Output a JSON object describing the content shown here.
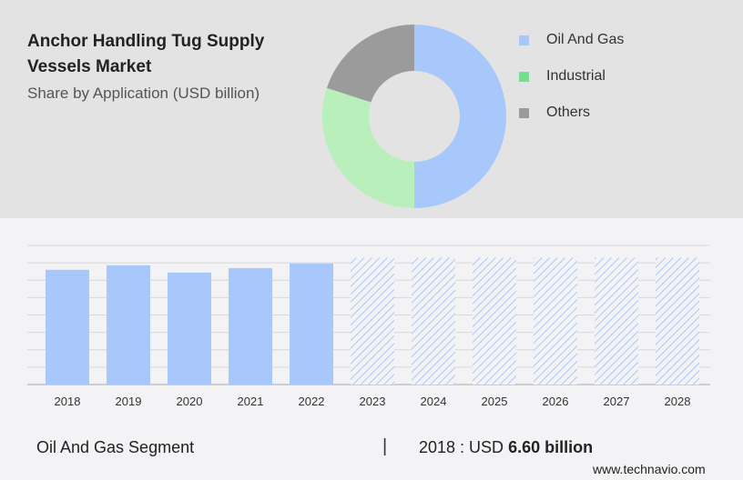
{
  "header": {
    "title": "Anchor Handling Tug Supply Vessels Market",
    "subtitle": "Share by Application (USD billion)"
  },
  "colors": {
    "oil": "#a8c8fc",
    "industrial": "#b9efba",
    "others": "#9b9b9b",
    "legend_industrial": "#72e08f",
    "forecast": "#a8c8fc"
  },
  "chart_data": [
    {
      "type": "pie",
      "title": "Share by Application (USD billion)",
      "donut": true,
      "labels": [
        "Oil And Gas",
        "Industrial",
        "Others"
      ],
      "values": [
        50,
        30,
        20
      ],
      "legend_placement": "right"
    },
    {
      "type": "bar",
      "categories": [
        "2018",
        "2019",
        "2020",
        "2021",
        "2022",
        "2023",
        "2024",
        "2025",
        "2026",
        "2027",
        "2028"
      ],
      "values": [
        6.6,
        6.86,
        6.44,
        6.7,
        6.96,
        null,
        null,
        null,
        null,
        null,
        null
      ],
      "forecast_categories": [
        "2023",
        "2024",
        "2025",
        "2026",
        "2027",
        "2028"
      ],
      "ylim": [
        0,
        8
      ],
      "grid": true,
      "xlabel": "",
      "ylabel": ""
    }
  ],
  "footer": {
    "segment": "Oil And Gas Segment",
    "separator": "|",
    "year_prefix": "2018 : USD",
    "value": "6.60 billion",
    "site": "www.technavio.com"
  }
}
